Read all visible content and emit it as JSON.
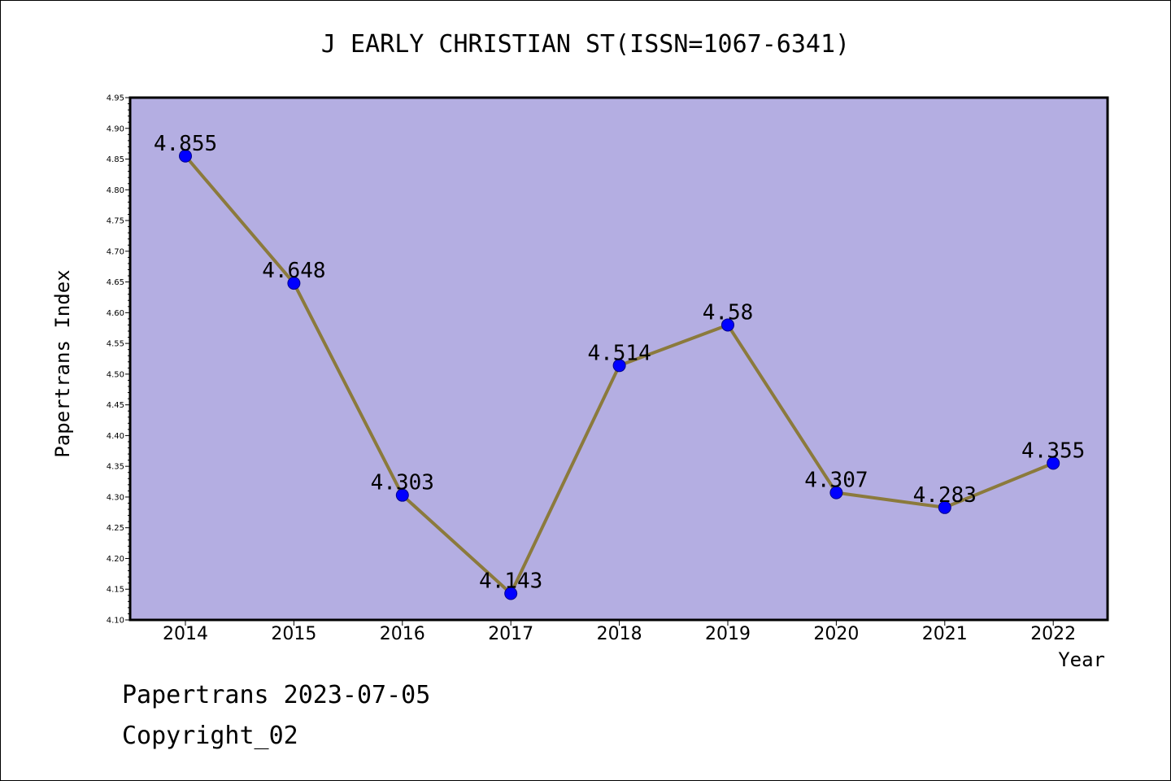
{
  "chart_data": {
    "type": "line",
    "title": "J EARLY CHRISTIAN ST(ISSN=1067-6341)",
    "xlabel": "Year",
    "ylabel": "Papertrans Index",
    "categories": [
      "2014",
      "2015",
      "2016",
      "2017",
      "2018",
      "2019",
      "2020",
      "2021",
      "2022"
    ],
    "series": [
      {
        "values": [
          4.855,
          4.648,
          4.303,
          4.143,
          4.514,
          4.58,
          4.307,
          4.283,
          4.355
        ],
        "data_labels": [
          "4.855",
          "4.648",
          "4.303",
          "4.143",
          "4.514",
          "4.58",
          "4.307",
          "4.283",
          "4.355"
        ]
      }
    ],
    "ylim": [
      4.1,
      4.95
    ],
    "yticks": [
      "4.10",
      "4.15",
      "4.20",
      "4.25",
      "4.30",
      "4.35",
      "4.40",
      "4.45",
      "4.50",
      "4.55",
      "4.60",
      "4.65",
      "4.70",
      "4.75",
      "4.80",
      "4.85",
      "4.90",
      "4.95"
    ],
    "grid": false,
    "colors": {
      "plot_background": "#b4aee2",
      "line": "#8b7a3c",
      "marker": "#0000ff"
    }
  },
  "footer": {
    "line1": "Papertrans 2023-07-05",
    "line2": "Copyright_02"
  }
}
